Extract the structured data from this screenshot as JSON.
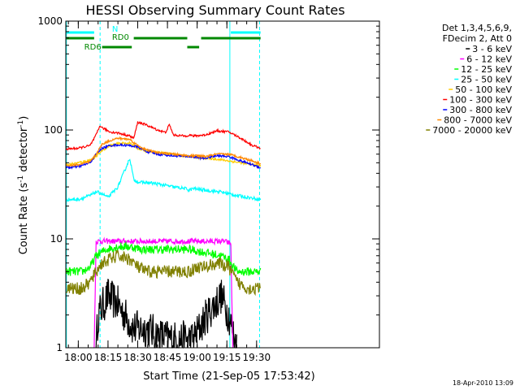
{
  "chart_data": {
    "type": "line",
    "title": "HESSI Observing Summary Count Rates",
    "xlabel": "Start Time (21-Sep-05 17:53:42)",
    "ylabel": "Count Rate (s",
    "ylabel_sup1": "-1",
    "ylabel_mid": " detector",
    "ylabel_sup2": "-1",
    "ylabel_end": ")",
    "y_scale": "log",
    "ylim": [
      1,
      1000
    ],
    "xlim_minutes": [
      53.7,
      212.0
    ],
    "x_ticks": [
      {
        "m": 60,
        "label": "18:00"
      },
      {
        "m": 75,
        "label": "18:15"
      },
      {
        "m": 90,
        "label": "18:30"
      },
      {
        "m": 105,
        "label": "18:45"
      },
      {
        "m": 120,
        "label": "19:00"
      },
      {
        "m": 135,
        "label": "19:15"
      },
      {
        "m": 150,
        "label": "19:30"
      }
    ],
    "y_ticks": [
      {
        "v": 1,
        "label": "1"
      },
      {
        "v": 10,
        "label": "10"
      },
      {
        "v": 100,
        "label": "100"
      },
      {
        "v": 1000,
        "label": "1000"
      }
    ],
    "legend": {
      "placement": "right",
      "header": [
        "Det 1,3,4,5,6,9,",
        "FDecim 2, Att 0"
      ]
    },
    "series": [
      {
        "name": "3 - 6 keV",
        "color": "#000000",
        "points": [
          [
            69,
            1
          ],
          [
            70,
            2
          ],
          [
            75,
            3
          ],
          [
            80,
            2.5
          ],
          [
            88,
            1.5
          ],
          [
            95,
            1.5
          ],
          [
            100,
            1.3
          ],
          [
            108,
            1.2
          ],
          [
            118,
            1.2
          ],
          [
            125,
            2
          ],
          [
            132,
            3
          ],
          [
            136,
            2
          ],
          [
            140,
            1
          ]
        ]
      },
      {
        "name": "6 - 12 keV",
        "color": "#ff00ff",
        "points": [
          [
            68,
            1
          ],
          [
            69,
            9.5
          ],
          [
            72,
            9.5
          ],
          [
            78,
            9.5
          ],
          [
            86,
            9.5
          ],
          [
            94,
            9.5
          ],
          [
            102,
            9.5
          ],
          [
            110,
            9.5
          ],
          [
            118,
            9.5
          ],
          [
            126,
            9.5
          ],
          [
            134,
            9.5
          ],
          [
            137,
            9
          ],
          [
            138,
            1
          ]
        ]
      },
      {
        "name": "12 - 25 keV",
        "color": "#00ff00",
        "points": [
          [
            54,
            5
          ],
          [
            62,
            5
          ],
          [
            66,
            5.5
          ],
          [
            69,
            7
          ],
          [
            74,
            8
          ],
          [
            80,
            8.5
          ],
          [
            86,
            8.5
          ],
          [
            92,
            8
          ],
          [
            100,
            8
          ],
          [
            108,
            8
          ],
          [
            116,
            8
          ],
          [
            124,
            7.5
          ],
          [
            132,
            7
          ],
          [
            136,
            6.5
          ],
          [
            140,
            5
          ],
          [
            150,
            5
          ],
          [
            152,
            5
          ]
        ]
      },
      {
        "name": "25 - 50 keV",
        "color": "#00ffff",
        "points": [
          [
            54,
            23
          ],
          [
            60,
            23
          ],
          [
            66,
            25
          ],
          [
            69,
            27
          ],
          [
            72,
            26
          ],
          [
            75,
            24
          ],
          [
            80,
            30
          ],
          [
            86,
            55
          ],
          [
            88,
            35
          ],
          [
            91,
            33
          ],
          [
            94,
            33
          ],
          [
            100,
            32
          ],
          [
            108,
            30
          ],
          [
            114,
            29
          ],
          [
            116,
            28
          ],
          [
            118,
            29
          ],
          [
            124,
            28
          ],
          [
            132,
            27
          ],
          [
            136,
            26
          ],
          [
            140,
            25
          ],
          [
            146,
            24
          ],
          [
            152,
            23
          ]
        ]
      },
      {
        "name": "50 - 100 keV",
        "color": "#ffcc00",
        "points": [
          [
            54,
            48
          ],
          [
            60,
            50
          ],
          [
            66,
            53
          ],
          [
            69,
            57
          ],
          [
            72,
            65
          ],
          [
            76,
            72
          ],
          [
            80,
            75
          ],
          [
            86,
            76
          ],
          [
            90,
            68
          ],
          [
            94,
            64
          ],
          [
            100,
            62
          ],
          [
            108,
            60
          ],
          [
            112,
            58
          ],
          [
            116,
            57
          ],
          [
            120,
            56
          ],
          [
            124,
            55
          ],
          [
            130,
            54
          ],
          [
            136,
            52
          ],
          [
            142,
            50
          ],
          [
            148,
            48
          ],
          [
            152,
            47
          ]
        ]
      },
      {
        "name": "100 - 300 keV",
        "color": "#ff0000",
        "points": [
          [
            54,
            67
          ],
          [
            60,
            68
          ],
          [
            66,
            72
          ],
          [
            69,
            90
          ],
          [
            71,
            110
          ],
          [
            72,
            105
          ],
          [
            76,
            96
          ],
          [
            80,
            94
          ],
          [
            86,
            88
          ],
          [
            88,
            84
          ],
          [
            90,
            118
          ],
          [
            94,
            112
          ],
          [
            100,
            100
          ],
          [
            104,
            95
          ],
          [
            106,
            112
          ],
          [
            108,
            90
          ],
          [
            114,
            88
          ],
          [
            116,
            90
          ],
          [
            118,
            88
          ],
          [
            124,
            90
          ],
          [
            130,
            98
          ],
          [
            136,
            96
          ],
          [
            142,
            84
          ],
          [
            148,
            72
          ],
          [
            152,
            68
          ]
        ]
      },
      {
        "name": "300 - 800 keV",
        "color": "#0000ff",
        "points": [
          [
            54,
            45
          ],
          [
            60,
            46
          ],
          [
            66,
            50
          ],
          [
            69,
            60
          ],
          [
            72,
            68
          ],
          [
            76,
            72
          ],
          [
            80,
            73
          ],
          [
            86,
            72
          ],
          [
            90,
            70
          ],
          [
            94,
            64
          ],
          [
            100,
            60
          ],
          [
            108,
            58
          ],
          [
            116,
            57
          ],
          [
            120,
            56
          ],
          [
            124,
            55
          ],
          [
            130,
            58
          ],
          [
            136,
            57
          ],
          [
            142,
            52
          ],
          [
            148,
            48
          ],
          [
            152,
            45
          ]
        ]
      },
      {
        "name": "800 - 7000 keV",
        "color": "#ff8800",
        "points": [
          [
            54,
            47
          ],
          [
            60,
            48
          ],
          [
            66,
            51
          ],
          [
            69,
            60
          ],
          [
            72,
            74
          ],
          [
            76,
            80
          ],
          [
            80,
            84
          ],
          [
            86,
            82
          ],
          [
            90,
            72
          ],
          [
            94,
            66
          ],
          [
            100,
            62
          ],
          [
            108,
            60
          ],
          [
            116,
            58
          ],
          [
            120,
            58
          ],
          [
            124,
            57
          ],
          [
            130,
            60
          ],
          [
            136,
            60
          ],
          [
            142,
            56
          ],
          [
            148,
            52
          ],
          [
            152,
            49
          ]
        ]
      },
      {
        "name": "7000 - 20000 keV",
        "color": "#808000",
        "points": [
          [
            54,
            3.5
          ],
          [
            62,
            3.5
          ],
          [
            66,
            4
          ],
          [
            69,
            5
          ],
          [
            72,
            6
          ],
          [
            76,
            6.5
          ],
          [
            80,
            7
          ],
          [
            86,
            6.5
          ],
          [
            90,
            5.5
          ],
          [
            94,
            5
          ],
          [
            100,
            5
          ],
          [
            108,
            5
          ],
          [
            116,
            5
          ],
          [
            120,
            5.5
          ],
          [
            124,
            5.5
          ],
          [
            130,
            6
          ],
          [
            136,
            5.5
          ],
          [
            140,
            4
          ],
          [
            146,
            3.5
          ],
          [
            152,
            3.5
          ]
        ]
      }
    ],
    "top_bars": [
      {
        "label": "N",
        "color": "#00ffff",
        "segments": [
          [
            54,
            68
          ],
          [
            137,
            152
          ]
        ],
        "level": 1
      },
      {
        "label": "RD0",
        "color": "#008800",
        "segments": [
          [
            54,
            68
          ],
          [
            88,
            115
          ],
          [
            122,
            152
          ]
        ],
        "level": 2
      },
      {
        "label": "RD6",
        "color": "#008800",
        "segments": [
          [
            72,
            87
          ],
          [
            115,
            121
          ]
        ],
        "level": 3
      }
    ],
    "vlines": [
      {
        "m": 54,
        "color": "#00ffff",
        "style": "solid"
      },
      {
        "m": 71,
        "color": "#00ffff",
        "style": "dashed"
      },
      {
        "m": 136.5,
        "color": "#00ffff",
        "style": "solid"
      },
      {
        "m": 151.5,
        "color": "#00ffff",
        "style": "dashed"
      }
    ]
  },
  "footer": {
    "date": "18-Apr-2010 13:09"
  }
}
